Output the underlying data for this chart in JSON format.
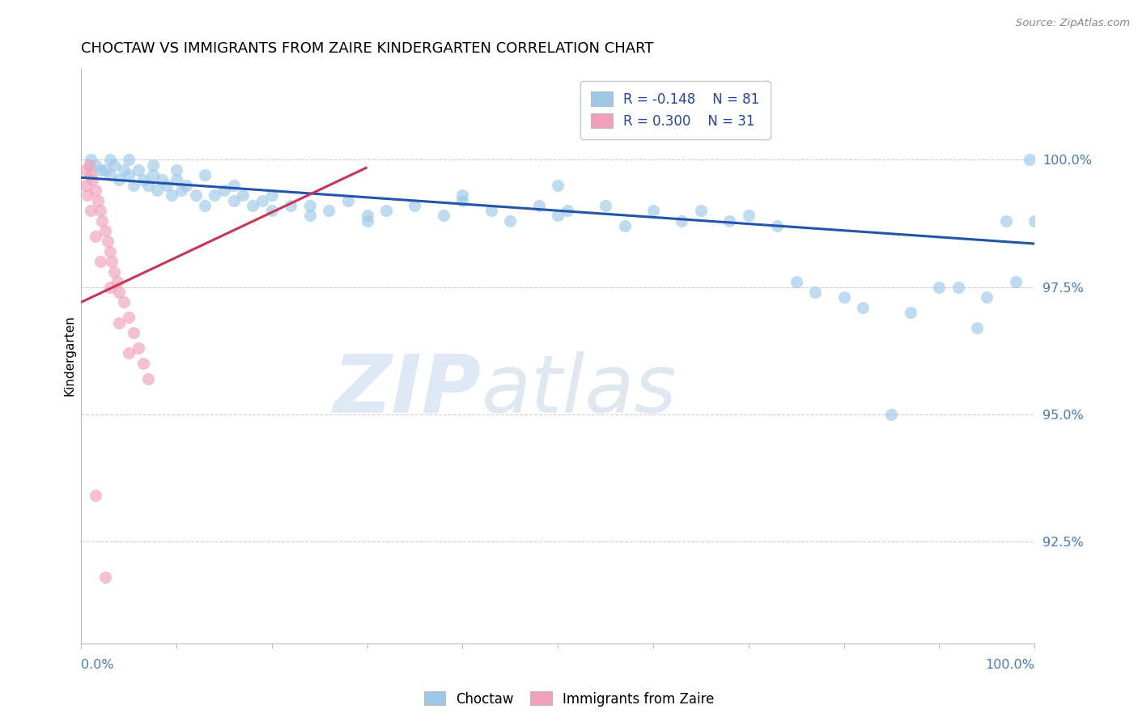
{
  "title": "CHOCTAW VS IMMIGRANTS FROM ZAIRE KINDERGARTEN CORRELATION CHART",
  "source": "Source: ZipAtlas.com",
  "ylabel": "Kindergarten",
  "legend_blue_r": "R = -0.148",
  "legend_blue_n": "N = 81",
  "legend_pink_r": "R = 0.300",
  "legend_pink_n": "N = 31",
  "legend1": "Choctaw",
  "legend2": "Immigrants from Zaire",
  "ytick_values": [
    92.5,
    95.0,
    97.5,
    100.0
  ],
  "xlim": [
    0.0,
    100.0
  ],
  "ylim": [
    90.5,
    101.8
  ],
  "blue_color": "#9DC8E8",
  "pink_color": "#F0A0B8",
  "blue_line_color": "#2255AA",
  "pink_line_color": "#CC3355",
  "grid_color": "#CCCCDD",
  "blue_scatter_x": [
    1.0,
    1.5,
    2.0,
    2.5,
    3.0,
    3.5,
    4.0,
    4.5,
    5.0,
    5.5,
    6.0,
    6.5,
    7.0,
    7.5,
    8.0,
    8.5,
    9.0,
    9.5,
    10.0,
    10.5,
    11.0,
    12.0,
    13.0,
    14.0,
    15.0,
    16.0,
    17.0,
    18.0,
    19.0,
    20.0,
    22.0,
    24.0,
    26.0,
    28.0,
    30.0,
    32.0,
    35.0,
    38.0,
    40.0,
    43.0,
    45.0,
    48.0,
    50.0,
    51.0,
    55.0,
    57.0,
    60.0,
    63.0,
    65.0,
    68.0,
    70.0,
    73.0,
    75.0,
    77.0,
    80.0,
    82.0,
    85.0,
    87.0,
    90.0,
    92.0,
    94.0,
    95.0,
    97.0,
    98.0,
    99.5,
    100.0,
    3.0,
    5.0,
    7.5,
    10.0,
    13.0,
    16.0,
    20.0,
    24.0,
    30.0,
    40.0,
    50.0
  ],
  "blue_scatter_y": [
    100.0,
    99.9,
    99.8,
    99.8,
    99.7,
    99.9,
    99.6,
    99.8,
    99.7,
    99.5,
    99.8,
    99.6,
    99.5,
    99.7,
    99.4,
    99.6,
    99.5,
    99.3,
    99.6,
    99.4,
    99.5,
    99.3,
    99.1,
    99.3,
    99.4,
    99.2,
    99.3,
    99.1,
    99.2,
    99.0,
    99.1,
    98.9,
    99.0,
    99.2,
    98.8,
    99.0,
    99.1,
    98.9,
    99.2,
    99.0,
    98.8,
    99.1,
    98.9,
    99.0,
    99.1,
    98.7,
    99.0,
    98.8,
    99.0,
    98.8,
    98.9,
    98.7,
    97.6,
    97.4,
    97.3,
    97.1,
    95.0,
    97.0,
    97.5,
    97.5,
    96.7,
    97.3,
    98.8,
    97.6,
    100.0,
    98.8,
    100.0,
    100.0,
    99.9,
    99.8,
    99.7,
    99.5,
    99.3,
    99.1,
    98.9,
    99.3,
    99.5
  ],
  "pink_scatter_x": [
    0.5,
    0.8,
    1.0,
    1.2,
    1.5,
    1.8,
    2.0,
    2.2,
    2.5,
    2.8,
    3.0,
    3.2,
    3.5,
    3.8,
    4.0,
    4.5,
    5.0,
    5.5,
    6.0,
    6.5,
    7.0,
    0.5,
    0.7,
    1.0,
    1.5,
    2.0,
    3.0,
    4.0,
    5.0,
    1.5,
    2.5
  ],
  "pink_scatter_y": [
    99.8,
    99.9,
    99.7,
    99.6,
    99.4,
    99.2,
    99.0,
    98.8,
    98.6,
    98.4,
    98.2,
    98.0,
    97.8,
    97.6,
    97.4,
    97.2,
    96.9,
    96.6,
    96.3,
    96.0,
    95.7,
    99.5,
    99.3,
    99.0,
    98.5,
    98.0,
    97.5,
    96.8,
    96.2,
    93.4,
    91.8
  ],
  "blue_trend_x": [
    0,
    100
  ],
  "blue_trend_y": [
    99.65,
    98.35
  ],
  "pink_trend_x": [
    0,
    30
  ],
  "pink_trend_y": [
    97.2,
    99.85
  ],
  "watermark_top": "ZIP",
  "watermark_bottom": "atlas"
}
